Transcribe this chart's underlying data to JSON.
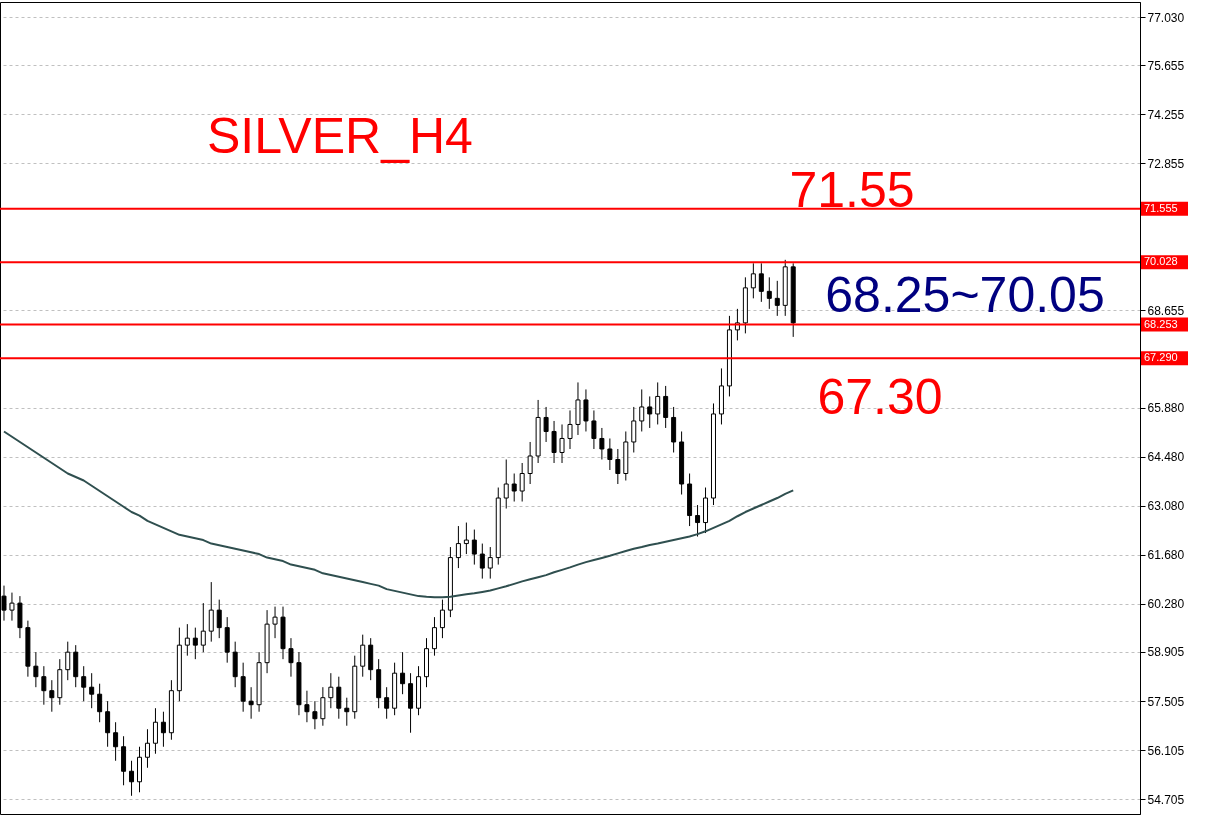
{
  "chart_data": {
    "type": "candlestick",
    "title": "SILVER_H4",
    "categories": [
      null,
      null,
      null,
      null,
      null,
      null,
      null,
      null,
      null,
      null,
      null,
      null,
      null,
      null,
      null,
      null,
      null,
      null,
      null,
      null,
      null,
      null,
      null,
      null,
      null,
      null,
      null,
      null,
      null,
      null,
      null,
      null,
      null,
      null,
      null,
      null,
      null,
      null,
      null,
      null,
      null,
      null,
      null,
      null,
      null,
      null,
      null,
      null,
      null,
      null,
      null,
      null,
      null,
      null,
      null,
      null,
      null,
      null,
      null,
      null,
      null,
      null,
      null,
      null,
      null,
      null,
      null,
      null,
      null,
      null,
      null,
      null,
      null,
      null,
      null,
      null,
      null,
      null,
      null,
      null,
      null,
      null,
      null,
      null,
      null,
      null,
      null,
      null,
      null,
      null,
      null,
      null,
      null,
      null,
      null,
      null,
      null,
      null,
      null,
      null,
      null,
      null,
      null,
      null,
      null,
      null,
      null,
      null,
      null,
      null,
      null,
      null,
      null,
      null,
      null,
      null,
      null,
      null,
      null,
      null,
      null,
      null,
      null,
      null,
      null,
      null,
      null,
      null,
      null,
      null,
      null,
      null,
      null,
      null,
      null,
      null,
      null,
      null,
      null,
      null,
      null,
      null,
      null
    ],
    "ohlc": [
      [
        60.5,
        60.8,
        59.8,
        60.1
      ],
      [
        60.1,
        60.6,
        59.8,
        60.3
      ],
      [
        60.3,
        60.5,
        59.3,
        59.6
      ],
      [
        59.6,
        59.8,
        58.2,
        58.5
      ],
      [
        58.5,
        58.9,
        57.9,
        58.2
      ],
      [
        58.2,
        58.5,
        57.4,
        57.8
      ],
      [
        57.8,
        58.1,
        57.2,
        57.6
      ],
      [
        57.6,
        58.7,
        57.4,
        58.4
      ],
      [
        58.4,
        59.2,
        58.1,
        58.9
      ],
      [
        58.9,
        59.1,
        57.9,
        58.2
      ],
      [
        58.2,
        58.5,
        57.5,
        57.9
      ],
      [
        57.9,
        58.3,
        57.3,
        57.7
      ],
      [
        57.7,
        58.0,
        56.9,
        57.2
      ],
      [
        57.2,
        57.5,
        56.2,
        56.6
      ],
      [
        56.6,
        56.9,
        55.8,
        56.2
      ],
      [
        56.2,
        56.5,
        55.1,
        55.5
      ],
      [
        55.5,
        55.8,
        54.8,
        55.2
      ],
      [
        55.2,
        56.2,
        54.9,
        55.9
      ],
      [
        55.9,
        56.7,
        55.6,
        56.3
      ],
      [
        56.3,
        57.3,
        56.0,
        56.9
      ],
      [
        56.9,
        57.2,
        56.2,
        56.6
      ],
      [
        56.6,
        58.1,
        56.4,
        57.8
      ],
      [
        57.8,
        59.6,
        57.5,
        59.1
      ],
      [
        59.1,
        59.7,
        58.8,
        59.3
      ],
      [
        59.3,
        59.6,
        58.7,
        59.1
      ],
      [
        59.1,
        60.3,
        58.9,
        59.5
      ],
      [
        59.5,
        60.9,
        59.2,
        60.1
      ],
      [
        60.1,
        60.4,
        59.3,
        59.6
      ],
      [
        59.6,
        59.9,
        58.6,
        58.9
      ],
      [
        58.9,
        59.2,
        57.9,
        58.2
      ],
      [
        58.2,
        58.6,
        57.2,
        57.5
      ],
      [
        57.5,
        57.9,
        57.0,
        57.4
      ],
      [
        57.4,
        58.9,
        57.2,
        58.6
      ],
      [
        58.6,
        60.1,
        58.3,
        59.7
      ],
      [
        59.7,
        60.2,
        59.3,
        59.9
      ],
      [
        59.9,
        60.2,
        58.7,
        59.0
      ],
      [
        59.0,
        59.3,
        58.2,
        58.6
      ],
      [
        58.6,
        58.9,
        57.1,
        57.4
      ],
      [
        57.4,
        57.8,
        56.9,
        57.2
      ],
      [
        57.2,
        57.5,
        56.7,
        57.0
      ],
      [
        57.0,
        57.9,
        56.8,
        57.6
      ],
      [
        57.6,
        58.3,
        57.3,
        57.9
      ],
      [
        57.9,
        58.2,
        57.0,
        57.3
      ],
      [
        57.3,
        57.6,
        56.8,
        57.2
      ],
      [
        57.2,
        58.8,
        57.0,
        58.5
      ],
      [
        58.5,
        59.4,
        58.2,
        59.1
      ],
      [
        59.1,
        59.3,
        58.1,
        58.4
      ],
      [
        58.4,
        58.7,
        57.3,
        57.6
      ],
      [
        57.6,
        57.9,
        57.0,
        57.3
      ],
      [
        57.3,
        58.6,
        57.1,
        58.3
      ],
      [
        58.3,
        58.9,
        57.7,
        58.0
      ],
      [
        58.0,
        58.3,
        56.6,
        57.3
      ],
      [
        57.3,
        58.5,
        57.1,
        58.2
      ],
      [
        58.2,
        59.3,
        57.9,
        59.0
      ],
      [
        59.0,
        59.9,
        58.8,
        59.6
      ],
      [
        59.6,
        60.4,
        59.3,
        60.1
      ],
      [
        60.1,
        61.9,
        59.9,
        61.6
      ],
      [
        61.6,
        62.5,
        61.3,
        62.0
      ],
      [
        62.0,
        62.6,
        61.7,
        62.1
      ],
      [
        62.1,
        62.4,
        61.4,
        61.7
      ],
      [
        61.7,
        62.0,
        61.0,
        61.3
      ],
      [
        61.3,
        61.9,
        61.0,
        61.6
      ],
      [
        61.6,
        63.6,
        61.4,
        63.3
      ],
      [
        63.3,
        64.4,
        63.0,
        63.7
      ],
      [
        63.7,
        64.0,
        63.2,
        63.5
      ],
      [
        63.5,
        64.3,
        63.2,
        64.0
      ],
      [
        64.0,
        64.9,
        63.7,
        64.5
      ],
      [
        64.5,
        66.1,
        64.3,
        65.6
      ],
      [
        65.6,
        65.9,
        64.9,
        65.2
      ],
      [
        65.2,
        65.5,
        64.3,
        64.6
      ],
      [
        64.6,
        65.4,
        64.3,
        65.0
      ],
      [
        65.0,
        65.8,
        64.7,
        65.4
      ],
      [
        65.4,
        66.6,
        65.1,
        66.1
      ],
      [
        66.1,
        66.4,
        65.2,
        65.5
      ],
      [
        65.5,
        65.8,
        64.7,
        65.0
      ],
      [
        65.0,
        65.3,
        64.4,
        64.7
      ],
      [
        64.7,
        65.0,
        64.1,
        64.4
      ],
      [
        64.4,
        64.7,
        63.7,
        64.0
      ],
      [
        64.0,
        65.2,
        63.8,
        64.9
      ],
      [
        64.9,
        65.9,
        64.6,
        65.5
      ],
      [
        65.5,
        66.4,
        65.2,
        65.9
      ],
      [
        65.9,
        66.2,
        65.3,
        65.7
      ],
      [
        65.7,
        66.6,
        65.4,
        66.2
      ],
      [
        66.2,
        66.5,
        65.3,
        65.6
      ],
      [
        65.6,
        65.9,
        64.6,
        64.9
      ],
      [
        64.9,
        65.2,
        63.4,
        63.7
      ],
      [
        63.7,
        64.0,
        62.5,
        62.8
      ],
      [
        62.8,
        63.1,
        62.2,
        62.6
      ],
      [
        62.6,
        63.6,
        62.3,
        63.3
      ],
      [
        63.3,
        66.0,
        63.1,
        65.7
      ],
      [
        65.7,
        67.0,
        65.4,
        66.5
      ],
      [
        66.5,
        68.5,
        66.2,
        68.1
      ],
      [
        68.1,
        68.7,
        67.8,
        68.3
      ],
      [
        68.3,
        69.6,
        68.0,
        69.3
      ],
      [
        69.3,
        70.0,
        69.0,
        69.7
      ],
      [
        69.7,
        70.0,
        68.9,
        69.2
      ],
      [
        69.2,
        69.6,
        68.7,
        69.0
      ],
      [
        69.0,
        69.5,
        68.5,
        68.8
      ],
      [
        68.8,
        70.1,
        68.5,
        69.9
      ],
      [
        69.9,
        70.0,
        67.9,
        68.3
      ],
      null,
      null,
      null,
      null,
      null,
      null,
      null,
      null,
      null,
      null,
      null,
      null,
      null,
      null,
      null,
      null,
      null,
      null,
      null,
      null,
      null,
      null,
      null,
      null,
      null,
      null,
      null,
      null,
      null,
      null,
      null,
      null,
      null,
      null,
      null,
      null,
      null,
      null,
      null,
      null,
      null,
      null,
      null
    ],
    "series": [
      {
        "type": "line",
        "color": "#2f4f4f",
        "values": [
          65.2,
          65.05,
          64.9,
          64.75,
          64.6,
          64.45,
          64.3,
          64.15,
          64.0,
          63.9,
          63.8,
          63.65,
          63.5,
          63.35,
          63.2,
          63.05,
          62.9,
          62.8,
          62.65,
          62.55,
          62.45,
          62.35,
          62.25,
          62.2,
          62.15,
          62.1,
          62.0,
          61.95,
          61.9,
          61.85,
          61.8,
          61.75,
          61.7,
          61.6,
          61.55,
          61.5,
          61.4,
          61.35,
          61.3,
          61.25,
          61.15,
          61.1,
          61.05,
          61.0,
          60.95,
          60.9,
          60.85,
          60.8,
          60.7,
          60.65,
          60.6,
          60.55,
          60.5,
          60.48,
          60.47,
          60.47,
          60.48,
          60.52,
          60.55,
          60.58,
          60.62,
          60.66,
          60.72,
          60.78,
          60.85,
          60.92,
          60.98,
          61.04,
          61.1,
          61.18,
          61.25,
          61.32,
          61.4,
          61.47,
          61.53,
          61.59,
          61.65,
          61.72,
          61.79,
          61.85,
          61.9,
          61.96,
          62.0,
          62.05,
          62.1,
          62.15,
          62.2,
          62.27,
          62.35,
          62.45,
          62.55,
          62.65,
          62.78,
          62.9,
          63.0,
          63.1,
          63.2,
          63.3,
          63.42,
          63.52,
          null,
          null,
          null,
          null,
          null,
          null,
          null,
          null,
          null,
          null,
          null,
          null,
          null,
          null,
          null,
          null,
          null,
          null,
          null,
          null,
          null,
          null,
          null,
          null,
          null,
          null,
          null,
          null,
          null,
          null,
          null,
          null,
          null,
          null,
          null,
          null,
          null,
          null,
          null,
          null,
          null,
          null,
          null
        ]
      }
    ],
    "ylim": [
      54.28,
      77.46
    ],
    "yticks": [
      54.705,
      56.105,
      57.505,
      58.905,
      {
        "value": 60.28,
        "label": "60.280"
      },
      {
        "value": 61.68,
        "label": "61.680"
      },
      {
        "value": 63.08,
        "label": "63.080"
      },
      {
        "value": 64.48,
        "label": "64.480"
      },
      {
        "value": 65.88,
        "label": "65.880"
      },
      68.655,
      72.855,
      74.255,
      75.655,
      {
        "value": 77.03,
        "label": "77.030"
      }
    ],
    "ref_lines": [
      {
        "axis": "y",
        "value": 71.555,
        "label": "71.555",
        "color": "#ff0000"
      },
      {
        "axis": "y",
        "value": 70.028,
        "label": "70.028",
        "color": "#ff0000"
      },
      {
        "axis": "y",
        "value": 68.253,
        "label": "68.253",
        "color": "#ff0000"
      },
      {
        "axis": "y",
        "value": 67.29,
        "label": "67.290",
        "color": "#ff0000"
      }
    ],
    "annotations": [
      "71.55",
      "68.25~70.05",
      "67.30"
    ],
    "grid": "y",
    "tick_labels": "y"
  }
}
